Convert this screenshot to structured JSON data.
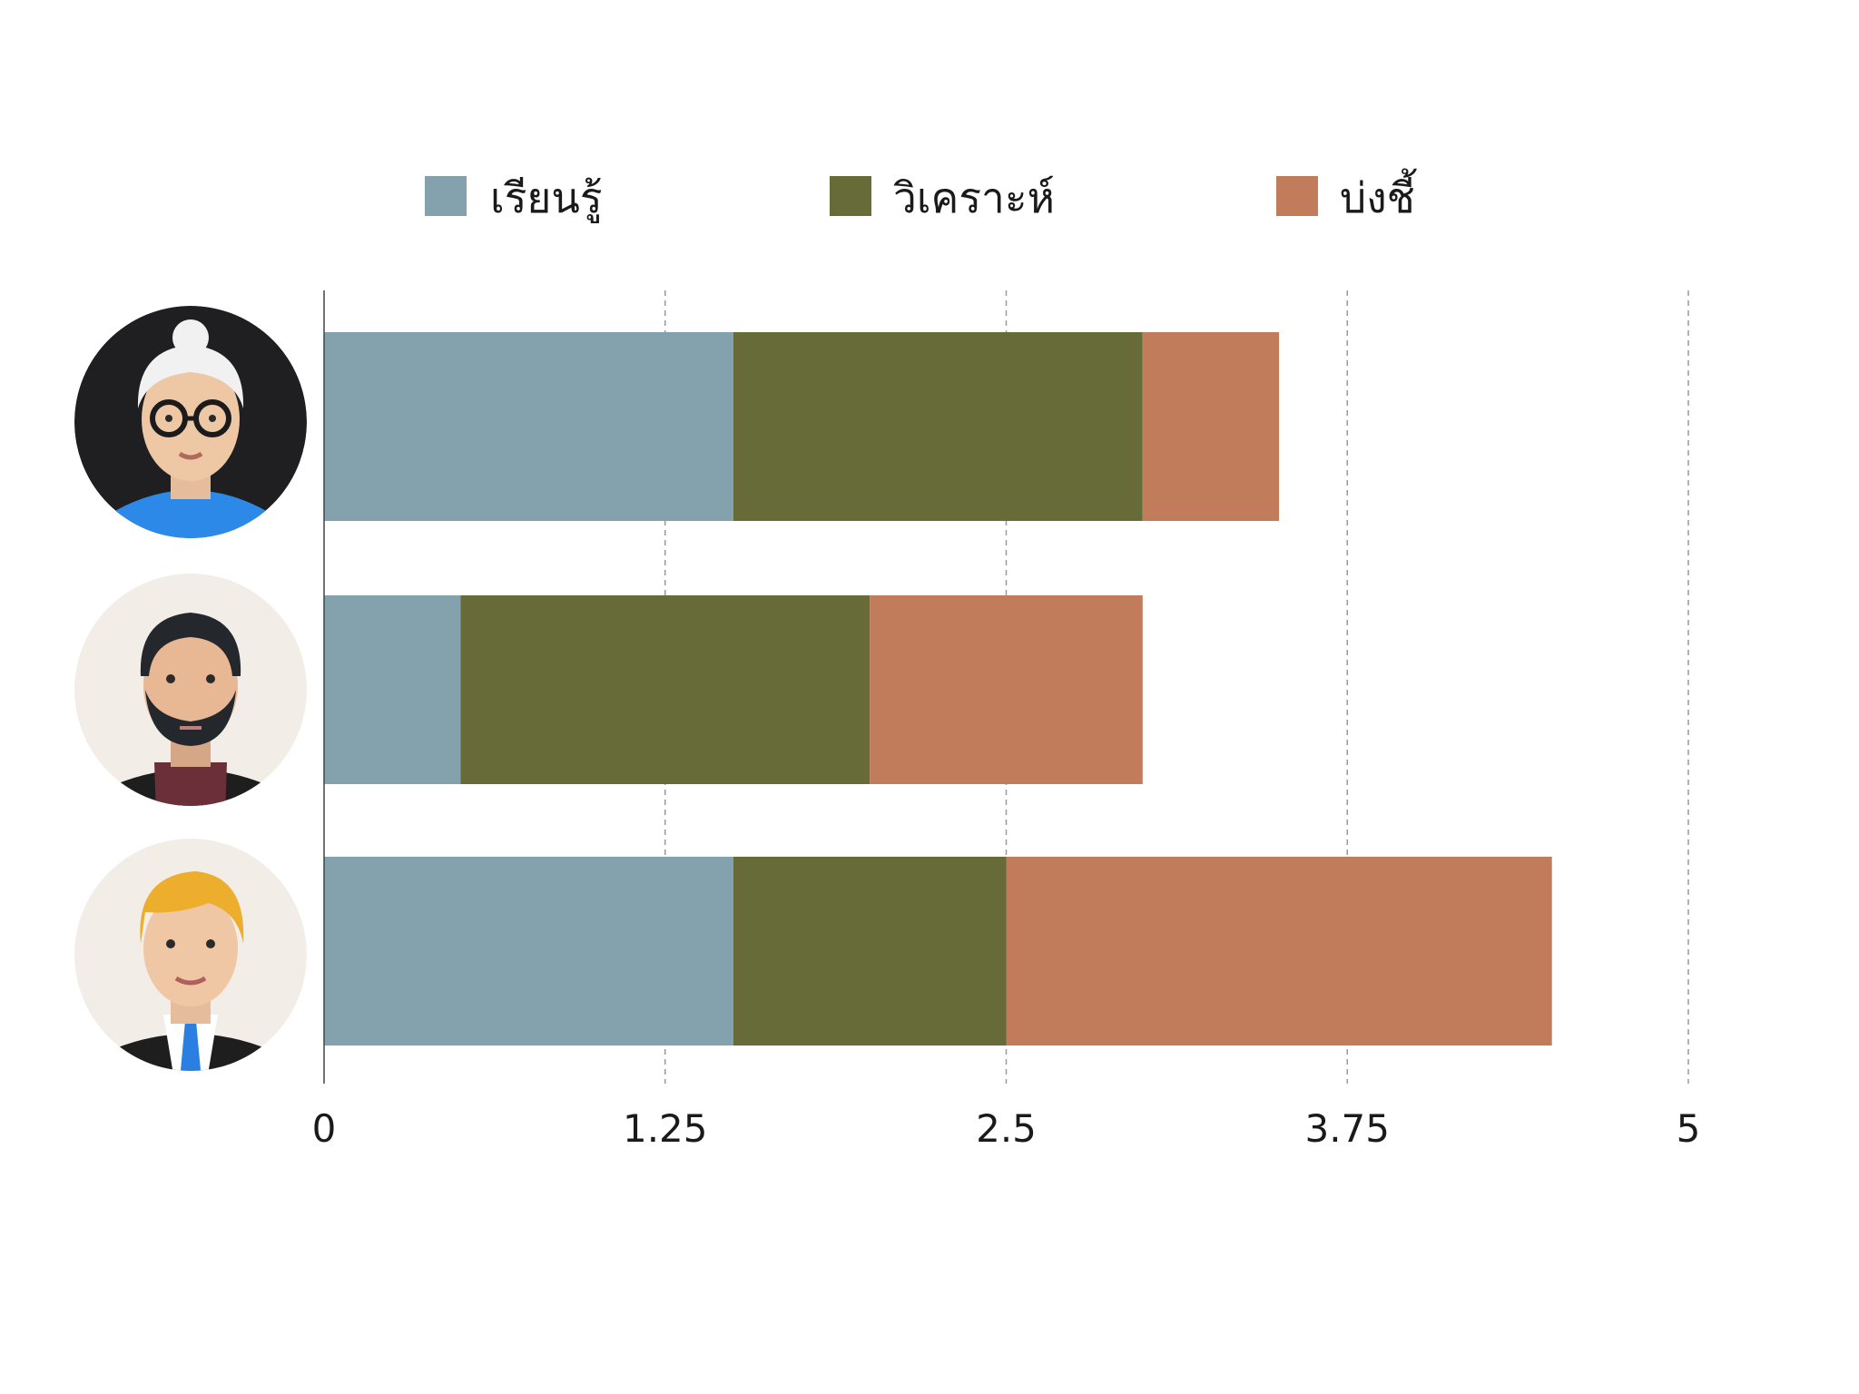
{
  "chart_data": {
    "type": "bar",
    "orientation": "horizontal",
    "stacked": true,
    "categories": [
      "elderly-woman-with-glasses",
      "bearded-man",
      "blond-man-in-suit"
    ],
    "series": [
      {
        "name": "เรียนรู้",
        "color": "#84a1ae",
        "values": [
          1.5,
          0.5,
          1.5
        ]
      },
      {
        "name": "วิเคราะห์",
        "color": "#676b38",
        "values": [
          1.5,
          1.5,
          1.0
        ]
      },
      {
        "name": "บ่งชี้",
        "color": "#c07c5b",
        "values": [
          0.5,
          1.0,
          2.0
        ]
      }
    ],
    "xlim": [
      0,
      5
    ],
    "xticks": [
      "0",
      "1.25",
      "2.5",
      "3.75",
      "5"
    ],
    "xtick_values": [
      0,
      1.25,
      2.5,
      3.75,
      5
    ],
    "grid": "vertical dashed",
    "legend_position": "top",
    "category_icons": [
      "elderly-woman-avatar",
      "bearded-man-avatar",
      "blond-man-avatar"
    ]
  }
}
